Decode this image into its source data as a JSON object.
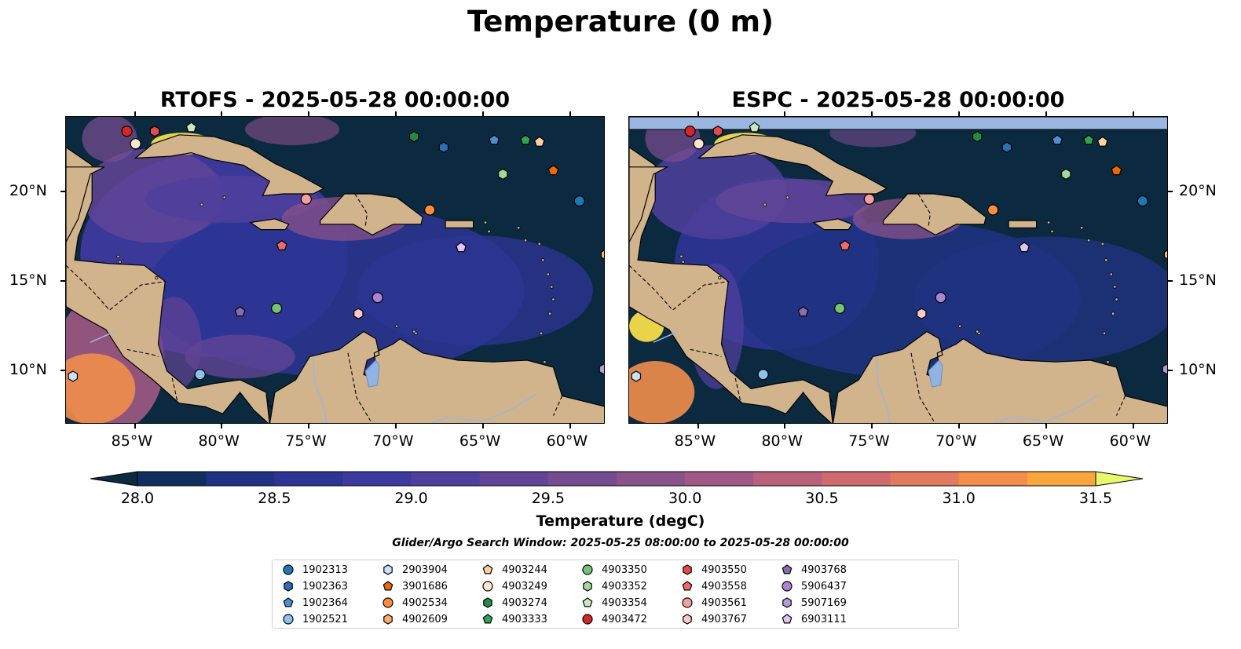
{
  "figure": {
    "title": "Temperature (0 m)",
    "search_window": "Glider/Argo Search Window: 2025-05-25 08:00:00 to 2025-05-28 00:00:00"
  },
  "panels": [
    {
      "title": "RTOFS - 2025-05-28 00:00:00",
      "model": "RTOFS"
    },
    {
      "title": "ESPC - 2025-05-28 00:00:00",
      "model": "ESPC"
    }
  ],
  "map": {
    "lon_range": [
      -89,
      -58
    ],
    "lat_range": [
      7,
      24.2
    ],
    "lon_ticks": [
      "85°W",
      "80°W",
      "75°W",
      "70°W",
      "65°W",
      "60°W"
    ],
    "lon_values": [
      -85,
      -80,
      -75,
      -70,
      -65,
      -60
    ],
    "lat_ticks": [
      "20°N",
      "15°N",
      "10°N"
    ],
    "lat_values": [
      20,
      15,
      10
    ],
    "land_color": "#d2b48c",
    "lake_color": "#8fb4e3"
  },
  "colorbar": {
    "label": "Temperature (degC)",
    "ticks": [
      "28.0",
      "28.5",
      "29.0",
      "29.5",
      "30.0",
      "30.5",
      "31.0",
      "31.5"
    ],
    "tick_values": [
      28.0,
      28.5,
      29.0,
      29.5,
      30.0,
      30.5,
      31.0,
      31.5
    ],
    "range": [
      28.0,
      31.5
    ],
    "step": 0.25,
    "colors": [
      "#0b2a3f",
      "#102f5e",
      "#1f3382",
      "#2c3593",
      "#3d3a9e",
      "#4f3f9c",
      "#624596",
      "#754c8f",
      "#8a528a",
      "#a05984",
      "#b8607c",
      "#cf6a6e",
      "#e27a5d",
      "#f18e4b",
      "#f8a63c",
      "#f9c23c",
      "#f6dc4a",
      "#e7f968"
    ],
    "extend": "both"
  },
  "floats": [
    {
      "id": "1902313",
      "marker": "circle",
      "color": "#1f77b4",
      "lon": -59.5,
      "lat": 19.5
    },
    {
      "id": "1902363",
      "marker": "hexagon",
      "color": "#2a6fb8",
      "lon": -67.3,
      "lat": 22.5
    },
    {
      "id": "1902364",
      "marker": "pentagon",
      "color": "#4a90d0",
      "lon": -64.4,
      "lat": 22.9
    },
    {
      "id": "1902521",
      "marker": "circle",
      "color": "#8cc3eb",
      "lon": -81.3,
      "lat": 9.8
    },
    {
      "id": "2903904",
      "marker": "hexagon",
      "color": "#c7e2f5",
      "lon": -88.6,
      "lat": 9.7
    },
    {
      "id": "3901686",
      "marker": "pentagon",
      "color": "#ee6a00",
      "lon": -61.0,
      "lat": 21.2
    },
    {
      "id": "4902534",
      "marker": "circle",
      "color": "#fd8d3c",
      "lon": -68.1,
      "lat": 19.0
    },
    {
      "id": "4902609",
      "marker": "hexagon",
      "color": "#fdae6b",
      "lon": -58.0,
      "lat": 16.5
    },
    {
      "id": "4903244",
      "marker": "pentagon",
      "color": "#fdd0a2",
      "lon": -61.8,
      "lat": 22.8
    },
    {
      "id": "4903249",
      "marker": "circle",
      "color": "#fee6ce",
      "lon": -85.0,
      "lat": 22.7
    },
    {
      "id": "4903274",
      "marker": "hexagon",
      "color": "#238b45",
      "lon": -69.0,
      "lat": 23.1
    },
    {
      "id": "4903333",
      "marker": "pentagon",
      "color": "#31a354",
      "lon": -62.6,
      "lat": 22.9
    },
    {
      "id": "4903350",
      "marker": "circle",
      "color": "#74c476",
      "lon": -76.9,
      "lat": 13.5
    },
    {
      "id": "4903352",
      "marker": "hexagon",
      "color": "#a1d99b",
      "lon": -63.9,
      "lat": 21.0
    },
    {
      "id": "4903354",
      "marker": "pentagon",
      "color": "#c7e9c0",
      "lon": -81.8,
      "lat": 23.6
    },
    {
      "id": "4903472",
      "marker": "circle",
      "color": "#d62728",
      "lon": -85.5,
      "lat": 23.4
    },
    {
      "id": "4903550",
      "marker": "hexagon",
      "color": "#e34a4a",
      "lon": -83.9,
      "lat": 23.4
    },
    {
      "id": "4903558",
      "marker": "pentagon",
      "color": "#ef6b6b",
      "lon": -76.6,
      "lat": 17.0
    },
    {
      "id": "4903561",
      "marker": "circle",
      "color": "#f4a0a0",
      "lon": -75.2,
      "lat": 19.6
    },
    {
      "id": "4903767",
      "marker": "hexagon",
      "color": "#fbc9c9",
      "lon": -72.2,
      "lat": 13.2
    },
    {
      "id": "4903768",
      "marker": "pentagon",
      "color": "#8c6bb1",
      "lon": -79.0,
      "lat": 13.3
    },
    {
      "id": "5906437",
      "marker": "circle",
      "color": "#a884d1",
      "lon": -71.1,
      "lat": 14.1
    },
    {
      "id": "5907169",
      "marker": "hexagon",
      "color": "#b99ad9",
      "lon": -58.1,
      "lat": 10.1
    },
    {
      "id": "6903111",
      "marker": "pentagon",
      "color": "#e0c4f4",
      "lon": -66.3,
      "lat": 16.9
    }
  ]
}
